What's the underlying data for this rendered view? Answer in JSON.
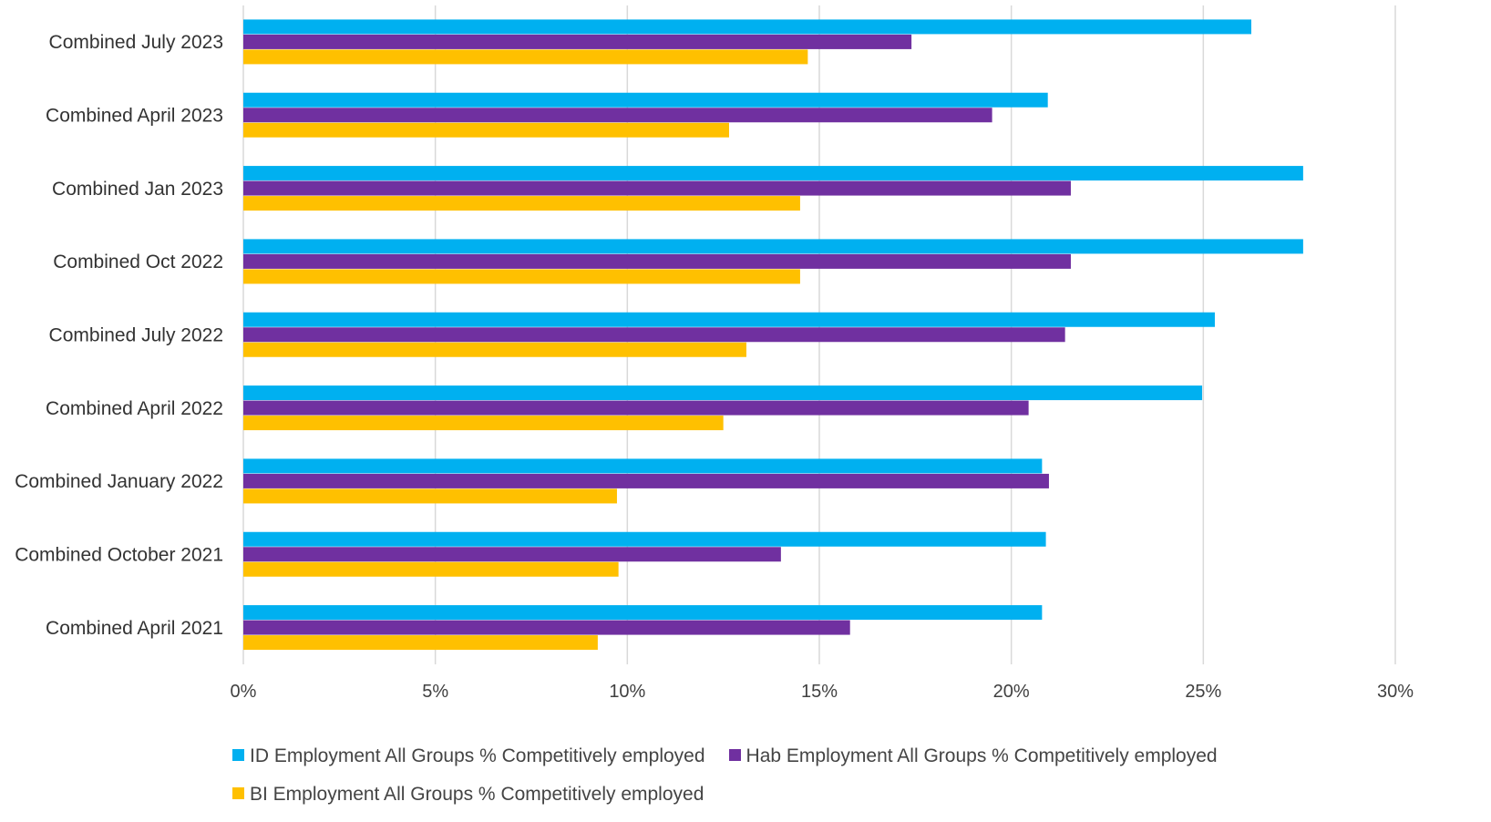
{
  "chart_data": {
    "type": "bar",
    "orientation": "horizontal",
    "title": "",
    "xlabel": "",
    "ylabel": "",
    "xlim": [
      0,
      0.3
    ],
    "x_ticks": [
      0,
      0.05,
      0.1,
      0.15,
      0.2,
      0.25,
      0.3
    ],
    "x_tick_labels": [
      "0%",
      "5%",
      "10%",
      "15%",
      "20%",
      "25%",
      "30%"
    ],
    "grid": "vertical",
    "legend_position": "bottom",
    "categories": [
      "Combined July 2023",
      "Combined April 2023",
      "Combined Jan 2023",
      "Combined Oct 2022",
      "Combined July 2022",
      "Combined April 2022",
      "Combined January 2022",
      "Combined October 2021",
      "Combined April  2021"
    ],
    "series": [
      {
        "name": "ID Employment All Groups % Competitively employed",
        "color": "#00b0f0",
        "values": [
          0.2625,
          0.2095,
          0.276,
          0.276,
          0.253,
          0.2497,
          0.208,
          0.209,
          0.208
        ]
      },
      {
        "name": "Hab Employment All Groups % Competitively employed",
        "color": "#7030a0",
        "values": [
          0.174,
          0.195,
          0.2155,
          0.2155,
          0.214,
          0.2045,
          0.2098,
          0.14,
          0.158
        ]
      },
      {
        "name": "BI Employment All Groups % Competitively employed",
        "color": "#ffc000",
        "values": [
          0.147,
          0.1265,
          0.145,
          0.145,
          0.131,
          0.125,
          0.0973,
          0.0977,
          0.0923
        ]
      }
    ]
  }
}
